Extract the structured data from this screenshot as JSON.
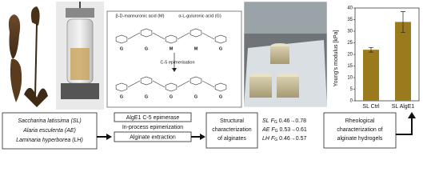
{
  "structure": {
    "mannuronic": "β-D-mannuronic acid (M)",
    "guluronic": "α-L-guluronic acid (G)",
    "reaction": "C-5 epimerisation",
    "top_units": [
      "G",
      "G",
      "M",
      "M",
      "G"
    ],
    "bottom_units": [
      "G",
      "G",
      "G",
      "G",
      "G"
    ]
  },
  "bar_chart": {
    "type": "bar",
    "ylabel": "Young's modulus [kPa]",
    "categories": [
      "SL Ctrl",
      "SL AlgE1"
    ],
    "values": [
      22,
      34
    ],
    "errors": [
      1,
      4.5
    ],
    "color": "#9a7a1c",
    "ylim": [
      0,
      40
    ],
    "yticks": [
      0,
      5,
      10,
      15,
      20,
      25,
      30,
      35,
      40
    ]
  },
  "flow": {
    "species": [
      "Saccharina latissima (SL)",
      "Alaria esculenta (AE)",
      "Laminaria hyperborea (LH)"
    ],
    "enzyme": "AlgE1 C-5 epimerase",
    "process": "In-process epimerization",
    "extraction": "Alginate extraction",
    "structural": [
      "Structural",
      "characterization",
      "of alginates"
    ],
    "results": [
      {
        "sample": "SL",
        "measure": "F",
        "subscript": "G",
        "change": "0.46→0.78"
      },
      {
        "sample": "AE",
        "measure": "F",
        "subscript": "G",
        "change": "0.53→0.61"
      },
      {
        "sample": "LH",
        "measure": "F",
        "subscript": "G",
        "change": "0.46→0.57"
      }
    ],
    "rheological": [
      "Rheological",
      "characterization of",
      "alginate hydrogels"
    ]
  }
}
